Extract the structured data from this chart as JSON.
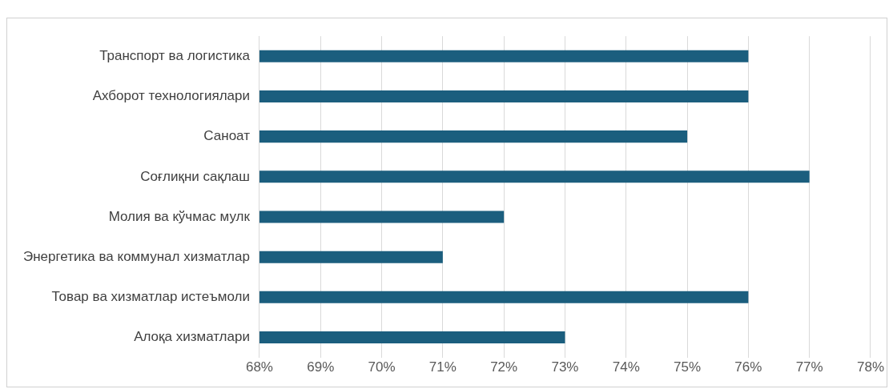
{
  "chart_data": {
    "type": "bar",
    "orientation": "horizontal",
    "categories": [
      "Транспорт ва логистика",
      "Ахборот технологиялари",
      "Саноат",
      "Соғлиқни сақлаш",
      "Молия ва кўчмас мулк",
      "Энергетика ва коммунал хизматлар",
      "Товар ва хизматлар истеъмоли",
      "Алоқа хизматлари"
    ],
    "values": [
      76,
      76,
      75,
      77,
      72,
      71,
      76,
      73
    ],
    "color": "#1b5e7e",
    "xlim": [
      68,
      78
    ],
    "xticks": [
      {
        "value": 68,
        "label": "68%"
      },
      {
        "value": 69,
        "label": "69%"
      },
      {
        "value": 70,
        "label": "70%"
      },
      {
        "value": 71,
        "label": "71%"
      },
      {
        "value": 72,
        "label": "72%"
      },
      {
        "value": 73,
        "label": "73%"
      },
      {
        "value": 74,
        "label": "74%"
      },
      {
        "value": 75,
        "label": "75%"
      },
      {
        "value": 76,
        "label": "76%"
      },
      {
        "value": 77,
        "label": "77%"
      },
      {
        "value": 78,
        "label": "78%"
      }
    ],
    "grid": "x",
    "legend": false
  }
}
